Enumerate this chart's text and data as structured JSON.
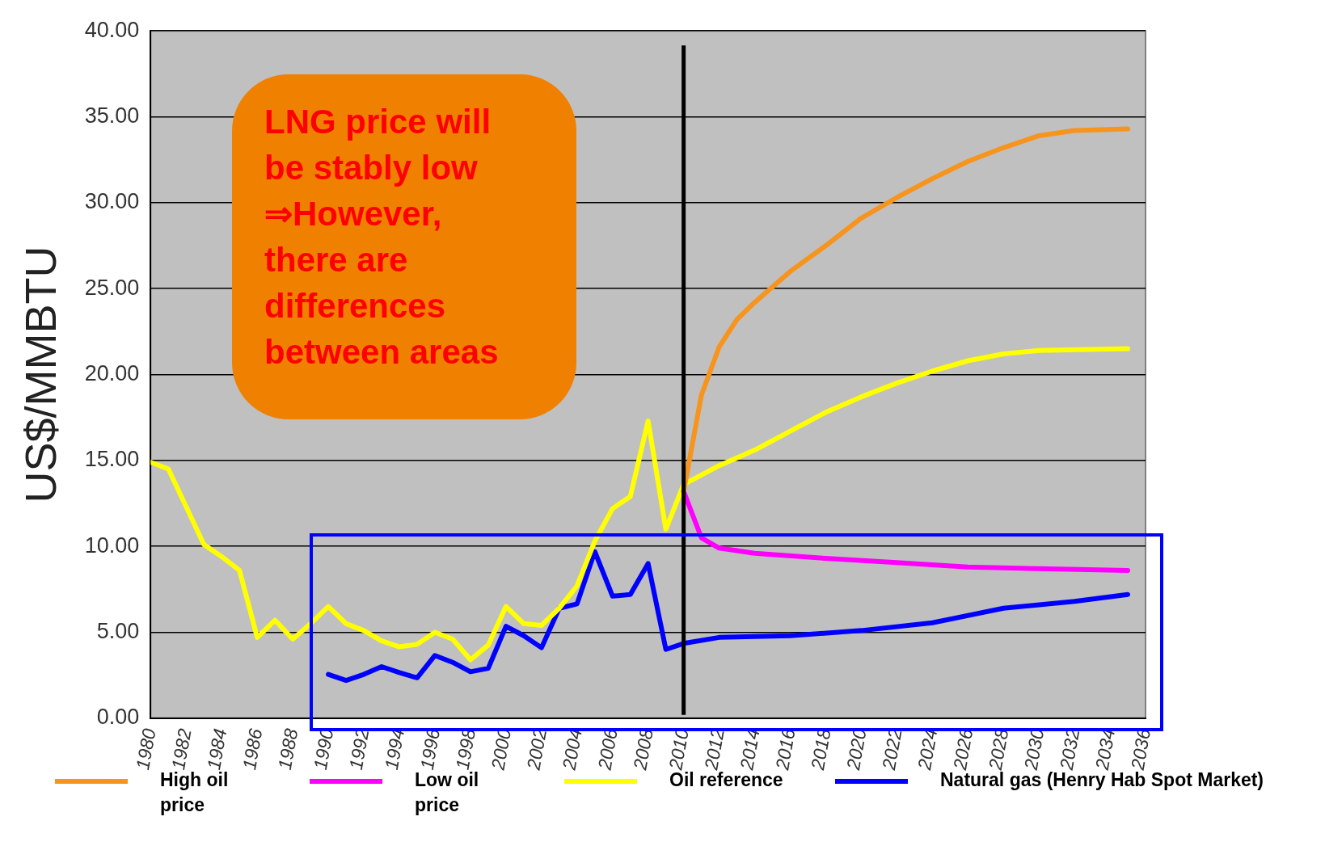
{
  "chart_data": {
    "type": "line",
    "ylabel": "US$/MMBTU",
    "xlim": [
      1980,
      2036
    ],
    "xticks": [
      1980,
      1982,
      1984,
      1986,
      1988,
      1990,
      1992,
      1994,
      1996,
      1998,
      2000,
      2002,
      2004,
      2006,
      2008,
      2010,
      2012,
      2014,
      2016,
      2018,
      2020,
      2022,
      2024,
      2026,
      2028,
      2030,
      2032,
      2034,
      2036
    ],
    "ylim": [
      0,
      40
    ],
    "yticks": [
      {
        "value": 0,
        "label": "0.00"
      },
      {
        "value": 5,
        "label": "5.00"
      },
      {
        "value": 10,
        "label": "10.00"
      },
      {
        "value": 15,
        "label": "15.00"
      },
      {
        "value": 20,
        "label": "20.00"
      },
      {
        "value": 25,
        "label": "25.00"
      },
      {
        "value": 30,
        "label": "30.00"
      },
      {
        "value": 35,
        "label": "35.00"
      },
      {
        "value": 40,
        "label": "40.00"
      }
    ],
    "grid": "y",
    "legend": "bottom",
    "line_style": "solid",
    "series": [
      {
        "name": "High oil price",
        "color": "#f7941d",
        "x": [
          2010,
          2011,
          2012,
          2013,
          2014,
          2016,
          2018,
          2020,
          2022,
          2024,
          2026,
          2028,
          2030,
          2032,
          2035
        ],
        "values": [
          13.2,
          18.8,
          21.6,
          23.2,
          24.2,
          26.0,
          27.5,
          29.1,
          30.3,
          31.4,
          32.4,
          33.2,
          33.9,
          34.2,
          34.3
        ]
      },
      {
        "name": "Low oil price",
        "color": "#ff00ff",
        "x": [
          2010,
          2011,
          2012,
          2014,
          2018,
          2022,
          2026,
          2030,
          2035
        ],
        "values": [
          13.2,
          10.5,
          9.9,
          9.6,
          9.3,
          9.05,
          8.8,
          8.7,
          8.6
        ]
      },
      {
        "name": "Oil reference",
        "color": "#ffff00",
        "x": [
          1980,
          1981,
          1982,
          1983,
          1984,
          1985,
          1986,
          1987,
          1988,
          1989,
          1990,
          1991,
          1992,
          1993,
          1994,
          1995,
          1996,
          1997,
          1998,
          1999,
          2000,
          2001,
          2002,
          2003,
          2004,
          2005,
          2006,
          2007,
          2008,
          2009,
          2010,
          2012,
          2014,
          2016,
          2018,
          2020,
          2022,
          2024,
          2026,
          2028,
          2030,
          2035
        ],
        "values": [
          14.9,
          14.5,
          12.3,
          10.1,
          9.4,
          8.6,
          4.7,
          5.7,
          4.6,
          5.5,
          6.5,
          5.5,
          5.1,
          4.5,
          4.15,
          4.3,
          5.0,
          4.6,
          3.4,
          4.25,
          6.5,
          5.5,
          5.4,
          6.4,
          7.7,
          10.3,
          12.2,
          12.9,
          17.3,
          11.0,
          13.6,
          14.7,
          15.6,
          16.7,
          17.8,
          18.7,
          19.5,
          20.2,
          20.8,
          21.2,
          21.4,
          21.5
        ]
      },
      {
        "name": "Natural gas (Henry Hab Spot Market)",
        "color": "#0000ff",
        "x": [
          1990,
          1991,
          1992,
          1993,
          1994,
          1995,
          1996,
          1997,
          1998,
          1999,
          2000,
          2001,
          2002,
          2003,
          2004,
          2005,
          2006,
          2007,
          2008,
          2009,
          2010,
          2012,
          2016,
          2020,
          2024,
          2028,
          2032,
          2035
        ],
        "values": [
          2.55,
          2.2,
          2.55,
          3.0,
          2.65,
          2.35,
          3.65,
          3.25,
          2.7,
          2.9,
          5.35,
          4.8,
          4.1,
          6.4,
          6.65,
          9.7,
          7.1,
          7.2,
          9.0,
          4.0,
          4.35,
          4.7,
          4.8,
          5.1,
          5.55,
          6.4,
          6.8,
          7.2
        ]
      }
    ],
    "ref_lines": [
      {
        "axis": "x",
        "value": 2010,
        "color": "#000000"
      }
    ],
    "annotations": [
      "LNG price will\nbe stably low\n⇒However,\nthere are\ndifferences\nbetween areas"
    ]
  }
}
